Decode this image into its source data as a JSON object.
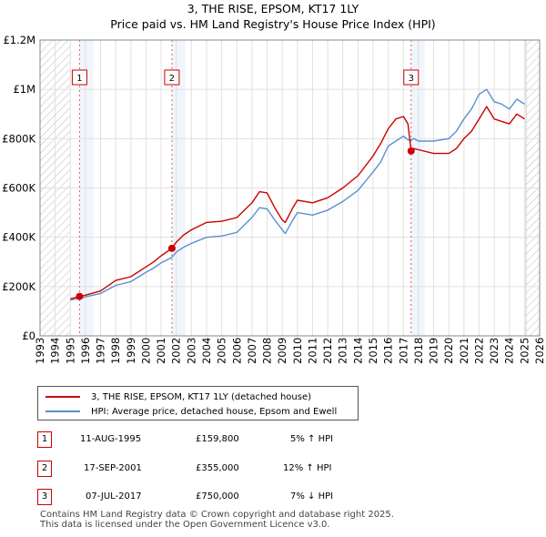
{
  "title_line1": "3, THE RISE, EPSOM, KT17 1LY",
  "title_line2": "Price paid vs. HM Land Registry's House Price Index (HPI)",
  "chart_data": {
    "type": "line",
    "title": "3, THE RISE, EPSOM, KT17 1LY",
    "subtitle": "Price paid vs. HM Land Registry's House Price Index (HPI)",
    "xlabel": "",
    "ylabel": "",
    "xlim": [
      1993,
      2026
    ],
    "ylim": [
      0,
      1200000
    ],
    "y_ticks": [
      0,
      200000,
      400000,
      600000,
      800000,
      1000000,
      1200000
    ],
    "y_tick_labels": [
      "£0",
      "£200K",
      "£400K",
      "£600K",
      "£800K",
      "£1M",
      "£1.2M"
    ],
    "x_ticks": [
      1993,
      1994,
      1995,
      1996,
      1997,
      1998,
      1999,
      2000,
      2001,
      2002,
      2003,
      2004,
      2005,
      2006,
      2007,
      2008,
      2009,
      2010,
      2011,
      2012,
      2013,
      2014,
      2015,
      2016,
      2017,
      2018,
      2019,
      2020,
      2021,
      2022,
      2023,
      2024,
      2025,
      2026
    ],
    "grid": true,
    "hatched_regions": [
      [
        1993,
        1995.0
      ],
      [
        2025.1,
        2026
      ]
    ],
    "series": [
      {
        "name": "3, THE RISE, EPSOM, KT17 1LY (detached house)",
        "color": "#cc0000",
        "x": [
          1995.0,
          1995.6,
          1996.0,
          1997.0,
          1998.0,
          1999.0,
          2000.0,
          2000.5,
          2001.0,
          2001.7,
          2002.0,
          2002.5,
          2003.0,
          2004.0,
          2005.0,
          2006.0,
          2007.0,
          2007.5,
          2008.0,
          2008.5,
          2009.0,
          2009.2,
          2009.7,
          2010.0,
          2011.0,
          2012.0,
          2013.0,
          2014.0,
          2015.0,
          2015.5,
          2016.0,
          2016.5,
          2017.0,
          2017.3,
          2017.51,
          2017.7,
          2018.0,
          2019.0,
          2020.0,
          2020.5,
          2021.0,
          2021.5,
          2022.0,
          2022.5,
          2023.0,
          2023.5,
          2024.0,
          2024.5,
          2025.0
        ],
        "y": [
          150000,
          159800,
          165000,
          182000,
          225000,
          240000,
          280000,
          300000,
          325000,
          355000,
          380000,
          410000,
          430000,
          460000,
          465000,
          480000,
          540000,
          585000,
          580000,
          520000,
          470000,
          460000,
          520000,
          550000,
          540000,
          560000,
          600000,
          650000,
          730000,
          780000,
          840000,
          880000,
          890000,
          860000,
          750000,
          760000,
          755000,
          740000,
          740000,
          760000,
          800000,
          830000,
          880000,
          930000,
          880000,
          870000,
          860000,
          900000,
          880000
        ]
      },
      {
        "name": "HPI: Average price, detached house, Epsom and Ewell",
        "color": "#5b8fd0",
        "x": [
          1995.0,
          1995.6,
          1996.0,
          1997.0,
          1998.0,
          1999.0,
          2000.0,
          2000.5,
          2001.0,
          2001.7,
          2002.0,
          2002.5,
          2003.0,
          2004.0,
          2005.0,
          2006.0,
          2007.0,
          2007.5,
          2008.0,
          2008.5,
          2009.0,
          2009.2,
          2009.7,
          2010.0,
          2011.0,
          2012.0,
          2013.0,
          2014.0,
          2015.0,
          2015.5,
          2016.0,
          2016.5,
          2017.0,
          2017.3,
          2017.51,
          2017.7,
          2018.0,
          2019.0,
          2020.0,
          2020.5,
          2021.0,
          2021.5,
          2022.0,
          2022.5,
          2023.0,
          2023.5,
          2024.0,
          2024.5,
          2025.0
        ],
        "y": [
          145000,
          152000,
          158000,
          172000,
          205000,
          220000,
          258000,
          275000,
          296000,
          318000,
          340000,
          360000,
          375000,
          400000,
          405000,
          420000,
          480000,
          520000,
          515000,
          470000,
          430000,
          415000,
          470000,
          500000,
          490000,
          510000,
          545000,
          590000,
          665000,
          705000,
          770000,
          790000,
          810000,
          795000,
          795000,
          800000,
          790000,
          790000,
          800000,
          830000,
          880000,
          920000,
          980000,
          1000000,
          950000,
          940000,
          920000,
          960000,
          940000
        ]
      }
    ],
    "sales": [
      {
        "label": "1",
        "x": 1995.61,
        "price": 159800
      },
      {
        "label": "2",
        "x": 2001.71,
        "price": 355000
      },
      {
        "label": "3",
        "x": 2017.51,
        "price": 750000
      }
    ]
  },
  "legend": [
    {
      "label": "3, THE RISE, EPSOM, KT17 1LY (detached house)",
      "color": "#cc0000"
    },
    {
      "label": "HPI: Average price, detached house, Epsom and Ewell",
      "color": "#5b8fd0"
    }
  ],
  "transactions": [
    {
      "num": "1",
      "date": "11-AUG-1995",
      "price": "£159,800",
      "hpi": "5% ↑ HPI"
    },
    {
      "num": "2",
      "date": "17-SEP-2001",
      "price": "£355,000",
      "hpi": "12% ↑ HPI"
    },
    {
      "num": "3",
      "date": "07-JUL-2017",
      "price": "£750,000",
      "hpi": "7% ↓ HPI"
    }
  ],
  "footer_line1": "Contains HM Land Registry data © Crown copyright and database right 2025.",
  "footer_line2": "This data is licensed under the Open Government Licence v3.0."
}
